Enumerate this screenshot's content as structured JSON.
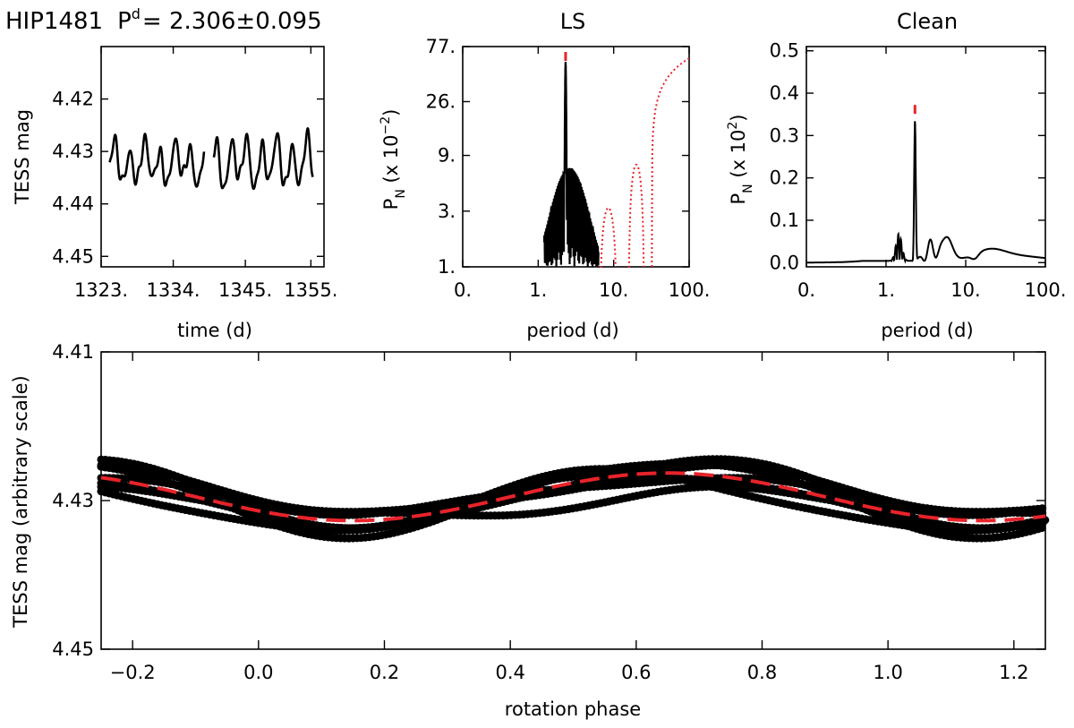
{
  "header": {
    "star": "HIP1481",
    "period_symbol": "P",
    "period_superscript": "d",
    "period_value": "= 2.306±0.095"
  },
  "colors": {
    "ink": "#000000",
    "model": "#e8232a",
    "window": "#e8232a"
  },
  "chart_data": [
    {
      "id": "lightcurve",
      "type": "line",
      "title": "",
      "xlabel": "time (d)",
      "ylabel": "TESS mag",
      "x_ticks": [
        "1323.",
        "1334.",
        "1345.",
        "1355."
      ],
      "x_tick_values": [
        1323,
        1334,
        1345,
        1355
      ],
      "y_ticks": [
        "4.42",
        "4.43",
        "4.44",
        "4.45"
      ],
      "y_tick_values": [
        4.42,
        4.43,
        4.44,
        4.45
      ],
      "xlim": [
        1323,
        1357
      ],
      "ylim": [
        4.452,
        4.41
      ],
      "y_inverted": true,
      "segments": [
        {
          "x_start": 1324.3,
          "x_end": 1338.7,
          "period": 2.306,
          "amplitude": 0.0032,
          "mean": 4.4323,
          "phase": 0.15
        },
        {
          "x_start": 1340.2,
          "x_end": 1355.3,
          "period": 2.306,
          "amplitude": 0.004,
          "mean": 4.4322,
          "phase": 0.4
        }
      ]
    },
    {
      "id": "ls",
      "type": "line",
      "title": "LS",
      "xlabel": "period (d)",
      "ylabel": "P_N (x 10^-2)",
      "ylabel_parts": [
        "P",
        "N",
        " (x 10",
        "−2",
        ")"
      ],
      "x_scale": "log",
      "x_ticks": [
        "0.",
        "1.",
        "10.",
        "100."
      ],
      "x_tick_values": [
        0.1,
        1,
        10,
        100
      ],
      "y_scale": "log",
      "y_ticks": [
        "1.",
        "3.",
        "9.",
        "26.",
        "77."
      ],
      "y_tick_values": [
        1,
        3,
        9,
        26,
        77
      ],
      "xlim": [
        0.1,
        100
      ],
      "ylim": [
        1,
        77
      ],
      "peak_period": 2.306,
      "peak_power": 56,
      "series": [
        {
          "name": "",
          "style": "solid",
          "color": "#000000"
        },
        {
          "name": "",
          "style": "dotted",
          "color": "#e8232a",
          "window_peaks": [
            {
              "period": 8.5,
              "power": 3.2
            },
            {
              "period": 20,
              "power": 7.5
            },
            {
              "period": 100,
              "power": 61
            }
          ]
        }
      ]
    },
    {
      "id": "clean",
      "type": "line",
      "title": "Clean",
      "xlabel": "period (d)",
      "ylabel": "P_N (x 10^2)",
      "ylabel_parts": [
        "P",
        "N",
        " (x 10",
        "2",
        ")"
      ],
      "x_scale": "log",
      "x_ticks": [
        "0.",
        "1.",
        "10.",
        "100."
      ],
      "x_tick_values": [
        0.1,
        1,
        10,
        100
      ],
      "y_ticks": [
        "0.0",
        "0.1",
        "0.2",
        "0.3",
        "0.4",
        "0.5"
      ],
      "y_tick_values": [
        0,
        0.1,
        0.2,
        0.3,
        0.4,
        0.5
      ],
      "xlim": [
        0.1,
        100
      ],
      "ylim": [
        -0.01,
        0.51
      ],
      "peak_period": 2.306,
      "peak_power": 0.33,
      "series": [
        {
          "name": "",
          "style": "solid",
          "color": "#000000"
        }
      ]
    },
    {
      "id": "phased",
      "type": "scatter",
      "title": "",
      "xlabel": "rotation phase",
      "ylabel": "TESS mag (arbitrary scale)",
      "x_ticks": [
        "−0.2",
        "0.0",
        "0.2",
        "0.4",
        "0.6",
        "0.8",
        "1.0",
        "1.2"
      ],
      "x_tick_values": [
        -0.2,
        0,
        0.2,
        0.4,
        0.6,
        0.8,
        1.0,
        1.2
      ],
      "y_ticks": [
        "4.41",
        "4.43",
        "4.45"
      ],
      "y_tick_values": [
        4.41,
        4.43,
        4.45
      ],
      "xlim": [
        -0.25,
        1.25
      ],
      "ylim": [
        4.45,
        4.41
      ],
      "y_inverted": true,
      "model": {
        "mean": 4.4295,
        "amplitude": 0.0032,
        "max_brightness_phase": 0.65,
        "style": "dashed",
        "color": "#e8232a"
      },
      "bands": [
        {
          "amplitude": 0.0023,
          "offset": -0.0003,
          "shift": 0.02
        },
        {
          "amplitude": 0.0035,
          "offset": 0.0002,
          "shift": -0.03
        },
        {
          "amplitude": 0.005,
          "offset": 0.0,
          "shift": 0.0
        },
        {
          "amplitude": 0.003,
          "offset": -0.0008,
          "shift": 0.06
        },
        {
          "amplitude": 0.004,
          "offset": 0.0006,
          "shift": -0.07
        },
        {
          "amplitude": 0.0018,
          "offset": 0.001,
          "shift": 0.1
        },
        {
          "amplitude": 0.0045,
          "offset": -0.0004,
          "shift": 0.04
        }
      ]
    }
  ]
}
